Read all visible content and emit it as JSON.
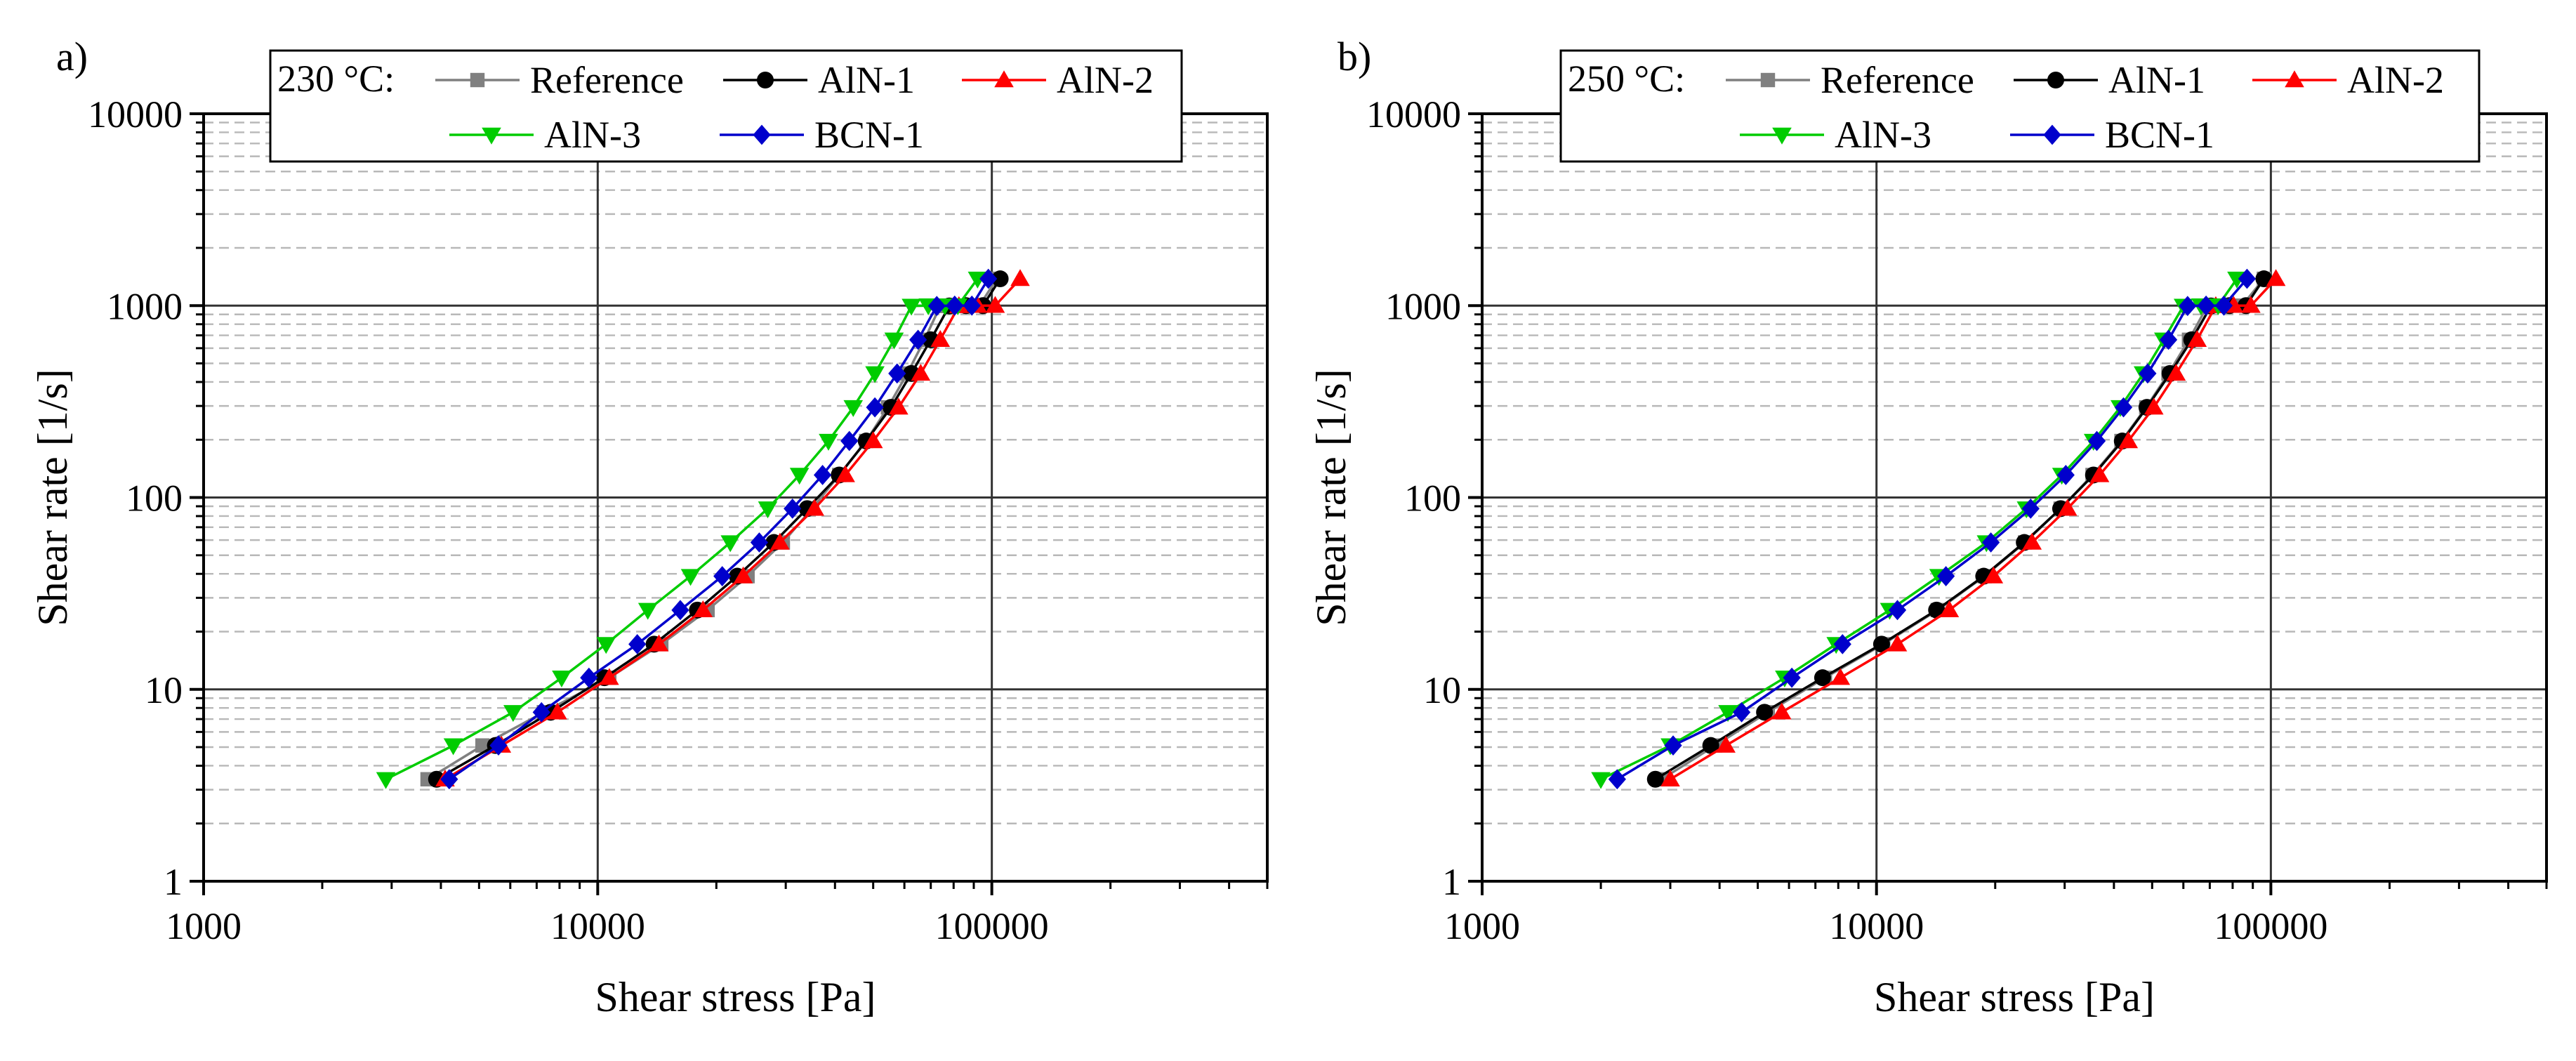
{
  "colors": {
    "Reference": "#808080",
    "AlN-1": "#000000",
    "AlN-2": "#ff0000",
    "AlN-3": "#00cc00",
    "BCN-1": "#0000cc"
  },
  "chart_data": [
    {
      "type": "line",
      "panel_label": "a)",
      "legend_title": "230 °C:",
      "xlabel": "Shear stress [Pa]",
      "ylabel": "Shear rate [1/s]",
      "xscale": "log",
      "yscale": "log",
      "xlim": [
        1000,
        500000
      ],
      "ylim": [
        1,
        10000
      ],
      "x_ticks": [
        "1000",
        "10000",
        "100000"
      ],
      "y_ticks": [
        "1",
        "10",
        "100",
        "1000",
        "10000"
      ],
      "grid": true,
      "legend_position": "top",
      "series": [
        {
          "name": "Reference",
          "marker": "square",
          "x": [
            3700,
            5100,
            7300,
            10700,
            14500,
            19000,
            24000,
            29500,
            35000,
            41000,
            48000,
            54500,
            61000,
            67500,
            74000,
            80000,
            86000,
            93000,
            103000
          ],
          "y": [
            3.4,
            5.1,
            7.6,
            11.5,
            17.2,
            25.9,
            38.9,
            58.3,
            87.5,
            131,
            197,
            295,
            443,
            664,
            996,
            1000,
            1000,
            1000,
            1380
          ]
        },
        {
          "name": "AlN-1",
          "marker": "circle",
          "x": [
            3900,
            5500,
            7600,
            10400,
            13900,
            17900,
            22600,
            28000,
            34000,
            41000,
            48000,
            55500,
            62500,
            70000,
            78000,
            86000,
            95000,
            105000
          ],
          "y": [
            3.4,
            5.1,
            7.6,
            11.5,
            17.2,
            25.9,
            38.9,
            58.3,
            87.5,
            131,
            197,
            295,
            443,
            664,
            996,
            1000,
            1000,
            1380
          ]
        },
        {
          "name": "AlN-2",
          "marker": "triangle-up",
          "x": [
            4100,
            5700,
            7900,
            10700,
            14300,
            18500,
            23400,
            29000,
            35500,
            42500,
            50000,
            58000,
            66000,
            74000,
            82500,
            92000,
            102000,
            118000
          ],
          "y": [
            3.4,
            5.1,
            7.6,
            11.5,
            17.2,
            25.9,
            38.9,
            58.3,
            87.5,
            131,
            197,
            295,
            443,
            664,
            996,
            1000,
            1000,
            1380
          ]
        },
        {
          "name": "AlN-3",
          "marker": "triangle-down",
          "x": [
            2900,
            4300,
            6100,
            8100,
            10500,
            13400,
            17200,
            21700,
            27000,
            32500,
            38500,
            44500,
            50500,
            56500,
            62500,
            69000,
            76000,
            82000,
            92000
          ],
          "y": [
            3.4,
            5.1,
            7.6,
            11.5,
            17.2,
            25.9,
            38.9,
            58.3,
            87.5,
            131,
            197,
            295,
            443,
            664,
            996,
            1000,
            1000,
            1000,
            1380
          ]
        },
        {
          "name": "BCN-1",
          "marker": "diamond",
          "x": [
            4200,
            5600,
            7200,
            9500,
            12600,
            16200,
            20700,
            25700,
            31200,
            37200,
            43500,
            50500,
            57500,
            65000,
            72500,
            80500,
            89000,
            98000
          ],
          "y": [
            3.4,
            5.1,
            7.6,
            11.5,
            17.2,
            25.9,
            38.9,
            58.3,
            87.5,
            131,
            197,
            295,
            443,
            664,
            996,
            1000,
            1000,
            1380
          ]
        }
      ]
    },
    {
      "type": "line",
      "panel_label": "b)",
      "legend_title": "250 °C:",
      "xlabel": "Shear stress [Pa]",
      "ylabel": "Shear rate [1/s]",
      "xscale": "log",
      "yscale": "log",
      "xlim": [
        1000,
        500000
      ],
      "ylim": [
        1,
        10000
      ],
      "x_ticks": [
        "1000",
        "10000",
        "100000"
      ],
      "y_ticks": [
        "1",
        "10",
        "100",
        "1000",
        "10000"
      ],
      "grid": true,
      "legend_position": "top",
      "series": [
        {
          "name": "Reference",
          "marker": "square",
          "x": [
            2850,
            3900,
            5300,
            7400,
            10400,
            14300,
            18800,
            23800,
            29300,
            35300,
            41800,
            48300,
            55000,
            62000,
            69000,
            76500,
            84500,
            96000
          ],
          "y": [
            3.4,
            5.1,
            7.6,
            11.5,
            17.2,
            25.9,
            38.9,
            58.3,
            87.5,
            131,
            197,
            295,
            443,
            664,
            996,
            1000,
            1000,
            1380
          ]
        },
        {
          "name": "AlN-1",
          "marker": "circle",
          "x": [
            2750,
            3800,
            5200,
            7300,
            10300,
            14200,
            18700,
            23700,
            29300,
            35500,
            42000,
            48500,
            55500,
            63000,
            70500,
            78500,
            86500,
            96000
          ],
          "y": [
            3.4,
            5.1,
            7.6,
            11.5,
            17.2,
            25.9,
            38.9,
            58.3,
            87.5,
            131,
            197,
            295,
            443,
            664,
            996,
            1000,
            1000,
            1380
          ]
        },
        {
          "name": "AlN-2",
          "marker": "triangle-up",
          "x": [
            3000,
            4150,
            5750,
            8100,
            11300,
            15300,
            19800,
            24800,
            30500,
            36800,
            43500,
            50500,
            57500,
            65000,
            72500,
            80500,
            89000,
            103000
          ],
          "y": [
            3.4,
            5.1,
            7.6,
            11.5,
            17.2,
            25.9,
            38.9,
            58.3,
            87.5,
            131,
            197,
            295,
            443,
            664,
            996,
            1000,
            1000,
            1380
          ]
        },
        {
          "name": "AlN-3",
          "marker": "triangle-down",
          "x": [
            2000,
            3000,
            4200,
            5850,
            7900,
            10800,
            14400,
            19000,
            24000,
            29500,
            35500,
            41500,
            47500,
            53500,
            60000,
            66500,
            73500,
            82000
          ],
          "y": [
            3.4,
            5.1,
            7.6,
            11.5,
            17.2,
            25.9,
            38.9,
            58.3,
            87.5,
            131,
            197,
            295,
            443,
            664,
            996,
            1000,
            1000,
            1380
          ]
        },
        {
          "name": "BCN-1",
          "marker": "diamond",
          "x": [
            2200,
            3050,
            4550,
            6100,
            8200,
            11300,
            15000,
            19500,
            24600,
            30200,
            36200,
            42300,
            48700,
            55000,
            61500,
            68500,
            76000,
            87000
          ],
          "y": [
            3.4,
            5.1,
            7.6,
            11.5,
            17.2,
            25.9,
            38.9,
            58.3,
            87.5,
            131,
            197,
            295,
            443,
            664,
            996,
            1000,
            1000,
            1380
          ]
        }
      ]
    }
  ]
}
